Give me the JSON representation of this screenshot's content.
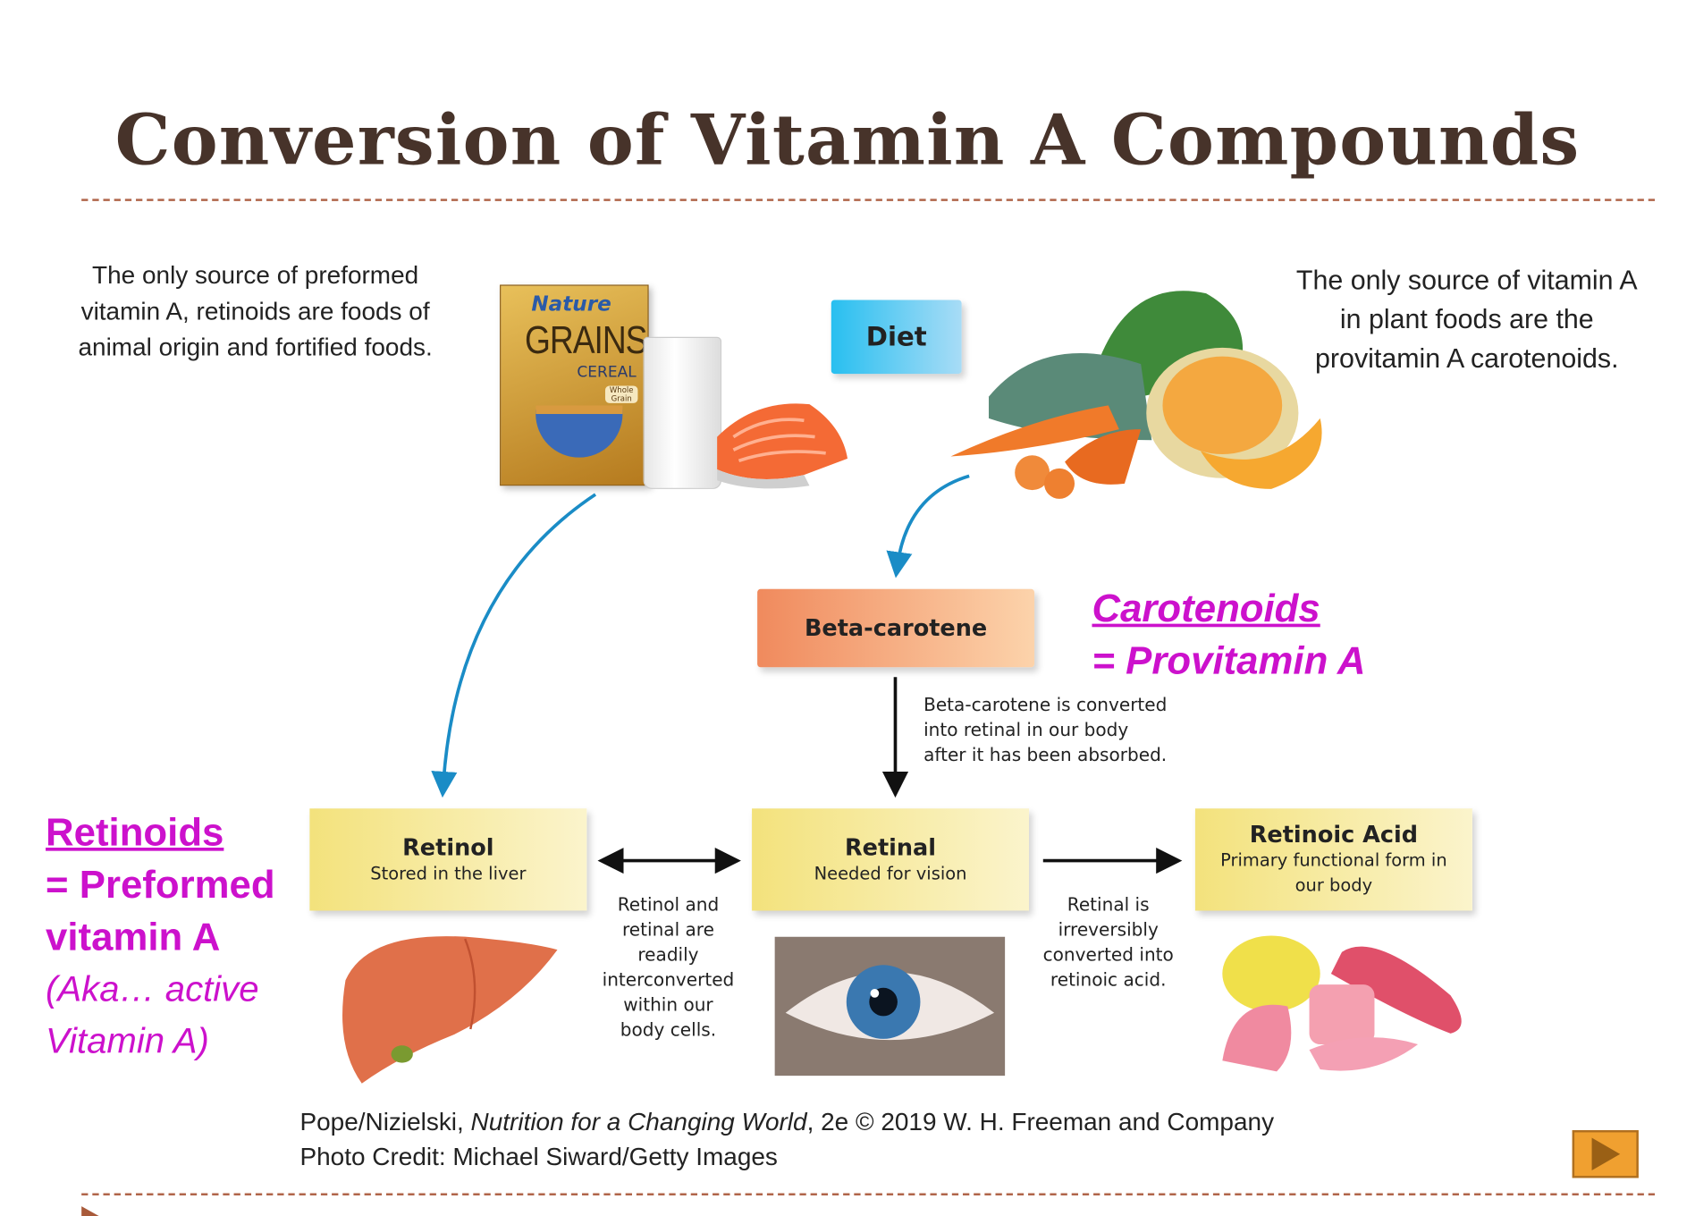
{
  "title": "Conversion of Vitamin A Compounds",
  "left_caption": [
    "The only source of preformed",
    "vitamin A, retinoids are foods of",
    "animal origin and fortified foods."
  ],
  "right_caption": [
    "The only source of vitamin A",
    "in plant foods are the",
    "provitamin A carotenoids."
  ],
  "cereal_box": {
    "brand": "Nature",
    "name": "GRAINS",
    "sub": "CEREAL",
    "badge": "Whole Grain"
  },
  "diet_label": "Diet",
  "beta_carotene_label": "Beta-carotene",
  "beta_note": [
    "Beta-carotene is converted",
    "into retinal in our body",
    "after it has been absorbed."
  ],
  "carotenoids": {
    "heading": "Carotenoids",
    "sub": "= Provitamin A"
  },
  "retinoids": {
    "heading": "Retinoids",
    "line1": "= Preformed",
    "line2": "vitamin A",
    "aka1": "(Aka… active",
    "aka2": "Vitamin A)"
  },
  "boxes": [
    {
      "title": "Retinol",
      "sub": "Stored in the liver"
    },
    {
      "title": "Retinal",
      "sub": "Needed for vision"
    },
    {
      "title": "Retinoic Acid",
      "sub": "Primary functional form in our body"
    }
  ],
  "middle_note": [
    "Retinol and",
    "retinal are",
    "readily",
    "interconverted",
    "within our",
    "body cells."
  ],
  "right_note": [
    "Retinal is",
    "irreversibly",
    "converted into",
    "retinoic acid."
  ],
  "citation": {
    "pre": "Pope/Nizielski, ",
    "book": "Nutrition for a Changing World",
    "post": ", 2e © 2019 W. H. Freeman and Company",
    "photo": "Photo Credit: Michael Siward/Getty Images"
  },
  "colors": {
    "title": "#47332a",
    "accent_magenta": "#cc11cc",
    "arrow_blue": "#1a8cc6",
    "diet_box": "#29c0ef",
    "beta_box": "#f08a5d",
    "retinoid_boxes": "#f3e27c",
    "next_button": "#f0a030"
  },
  "icons": {
    "next": "play-triangle-icon"
  }
}
